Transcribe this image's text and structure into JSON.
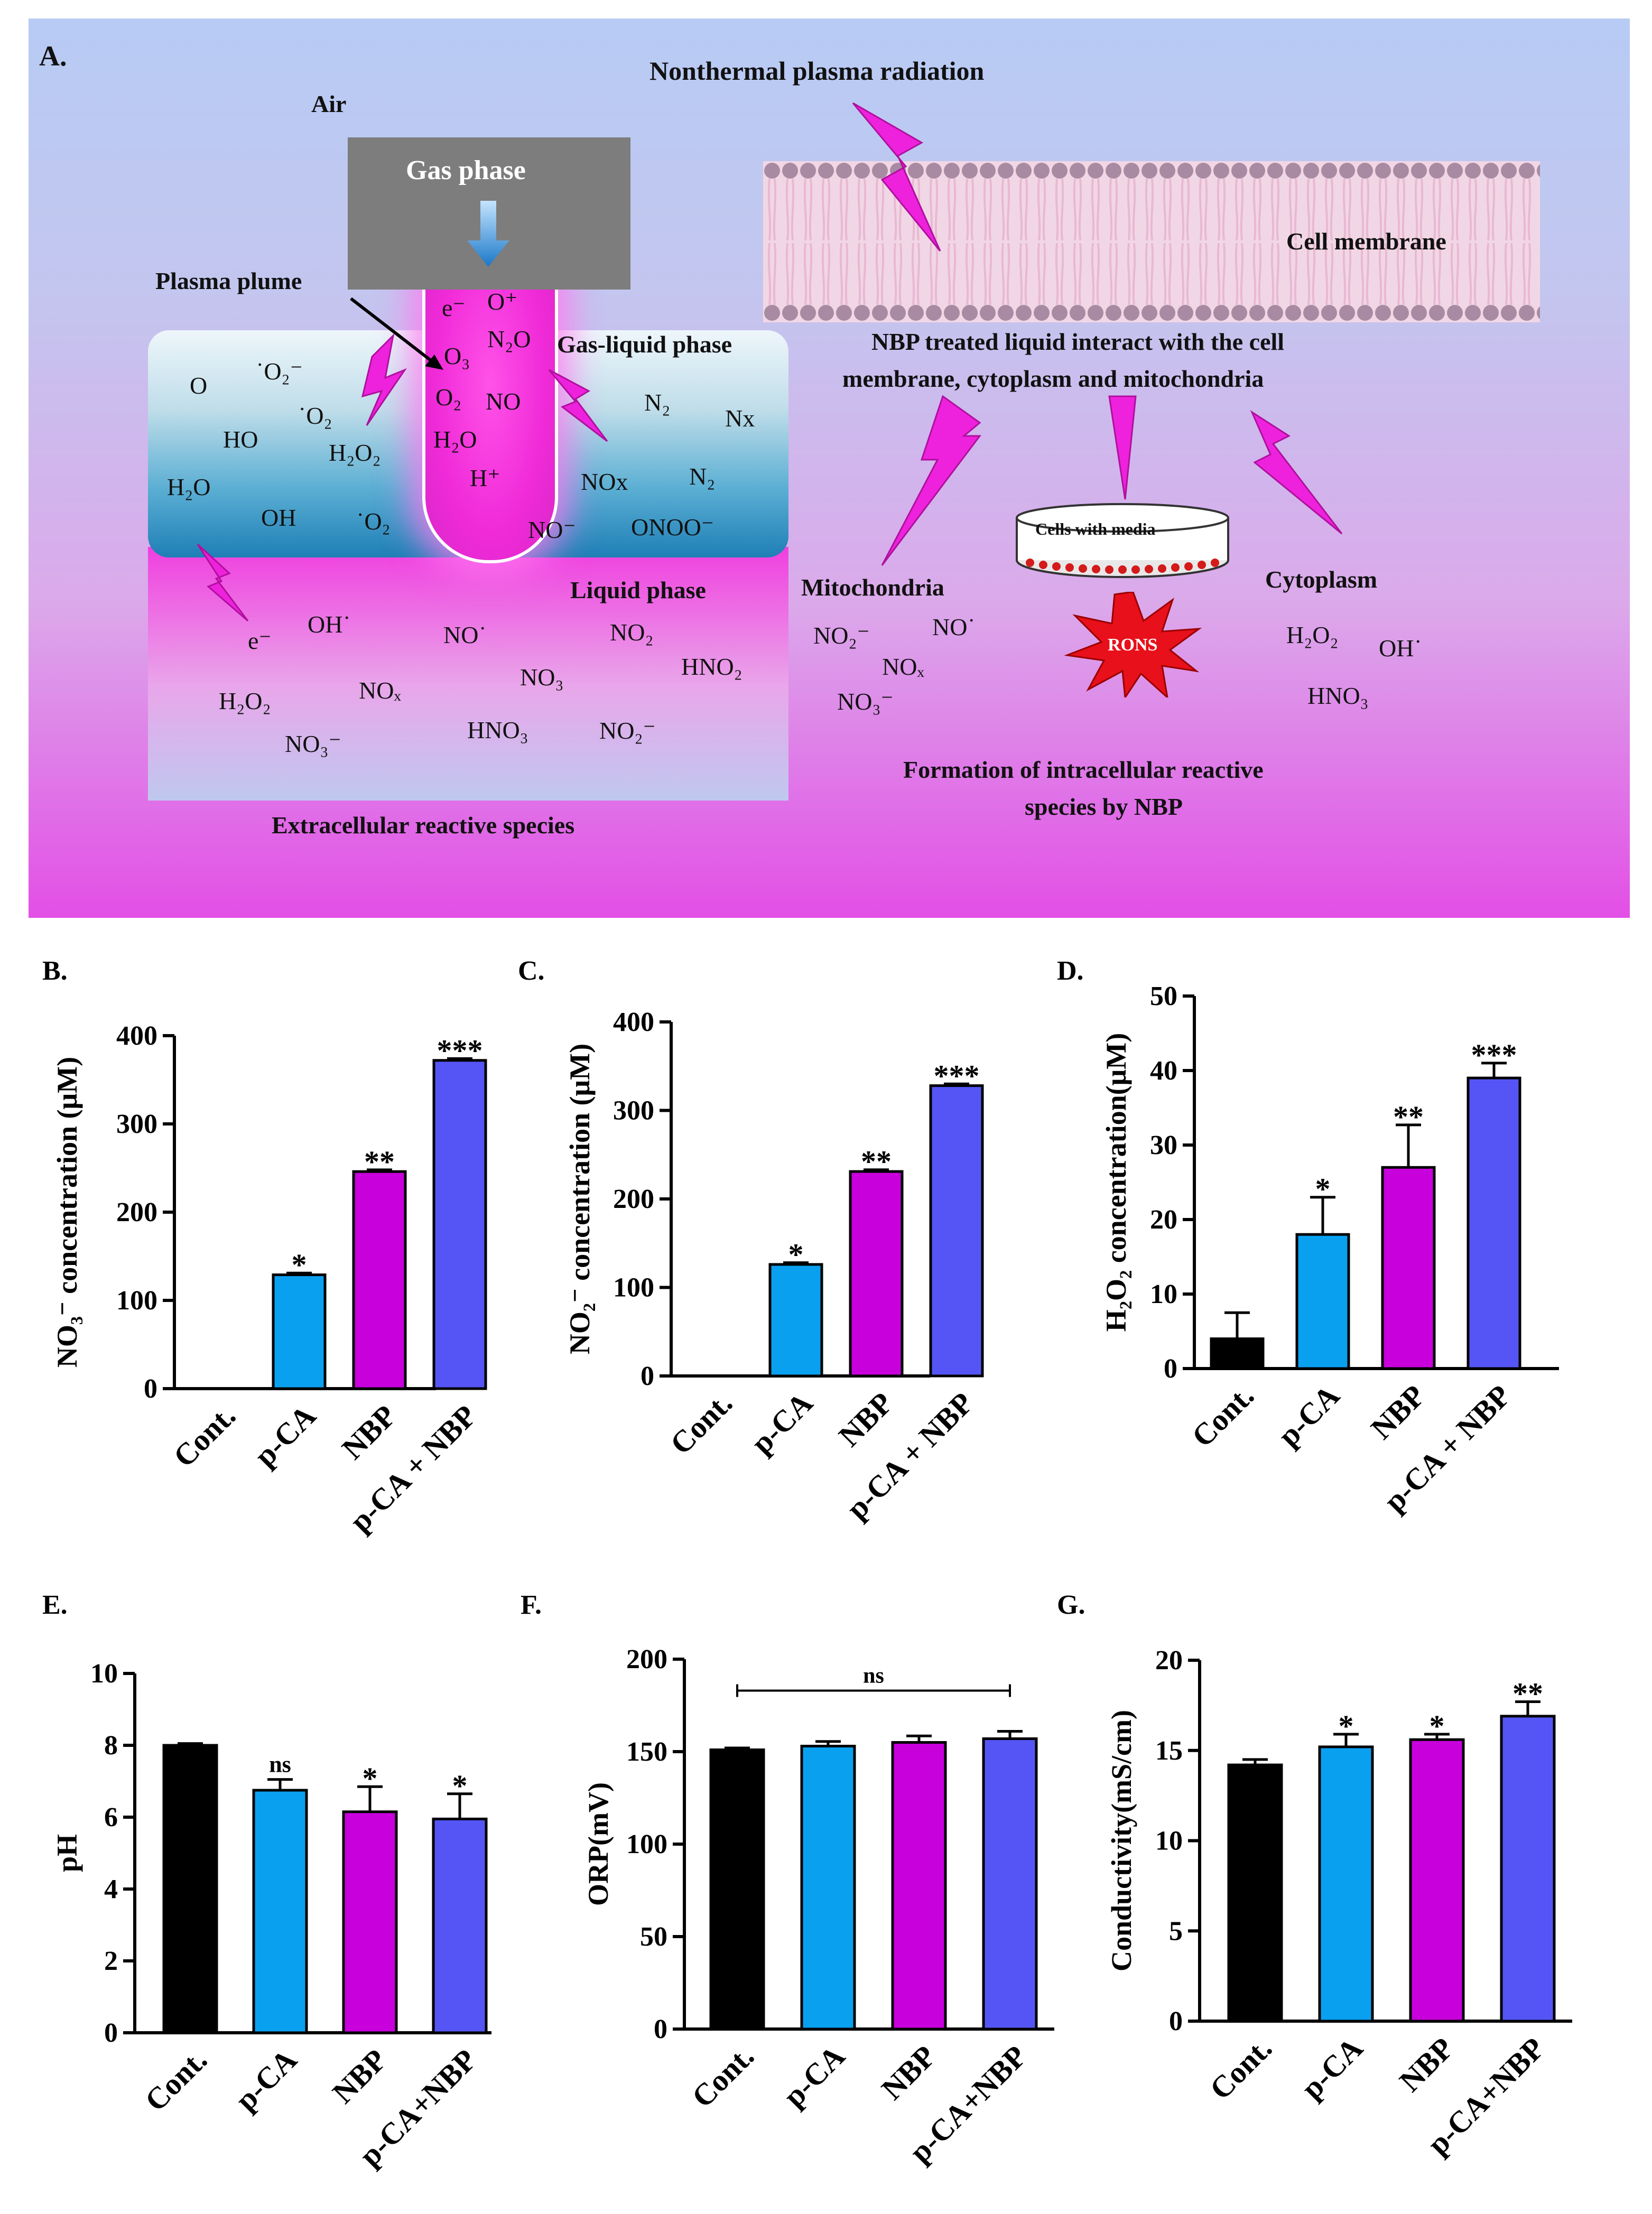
{
  "panel_a": {
    "letter": "A.",
    "title_radiation": "Nonthermal plasma radiation",
    "air": "Air",
    "gas_phase": "Gas phase",
    "plasma_plume": "Plasma plume",
    "gas_liquid_phase": "Gas-liquid phase",
    "liquid_phase": "Liquid phase",
    "extracellular": "Extracellular reactive species",
    "cell_membrane": "Cell membrane",
    "nbp_interact_line1": "NBP treated liquid interact with the cell",
    "nbp_interact_line2": "membrane, cytoplasm and mitochondria",
    "cells_with_media": "Cells with media",
    "mitochondria": "Mitochondria",
    "cytoplasm": "Cytoplasm",
    "rons": "RONS",
    "formation_line1": "Formation of intracellular reactive",
    "formation_line2": "species by NBP",
    "plume_species": [
      "e⁻",
      "O⁺",
      "O₃",
      "N₂O",
      "O₂",
      "NO",
      "H₂O",
      "H⁺"
    ],
    "gas_liquid_species": [
      "O",
      "˙O₂⁻",
      "˙O₂",
      "HO",
      "H₂O₂",
      "H₂O",
      "OH",
      "˙O₂",
      "N₂",
      "Nx",
      "NOx",
      "N₂",
      "NO⁻",
      "ONOO⁻"
    ],
    "liquid_species": [
      "e⁻",
      "OH˙",
      "NO˙",
      "NO₂",
      "NO₃",
      "HNO₂",
      "H₂O₂",
      "NOₓ",
      "HNO₃",
      "NO₂⁻",
      "NO₃⁻"
    ],
    "mito_species": [
      "NO₂⁻",
      "NO˙",
      "NOₓ",
      "NO₃⁻"
    ],
    "cyto_species": [
      "H₂O₂",
      "OH˙",
      "HNO₃"
    ]
  },
  "colors": {
    "cont": "#000000",
    "pca": "#0aa0f0",
    "nbp": "#c800dc",
    "combo": "#5555f5",
    "lightning": "#ee22dd"
  },
  "chart_data": [
    {
      "id": "B",
      "letter": "B.",
      "type": "bar",
      "categories": [
        "Cont.",
        "p-CA",
        "NBP",
        "p-CA + NBP"
      ],
      "values": [
        0,
        129,
        246,
        372
      ],
      "errors": [
        0,
        2,
        2,
        2
      ],
      "significance": [
        "",
        "*",
        "**",
        "***"
      ],
      "ylabel": "NO₃⁻ concentration (μM)",
      "ylim": [
        0,
        400
      ],
      "yticks": [
        0,
        100,
        200,
        300,
        400
      ]
    },
    {
      "id": "C",
      "letter": "C.",
      "type": "bar",
      "categories": [
        "Cont.",
        "p-CA",
        "NBP",
        "p-CA + NBP"
      ],
      "values": [
        0,
        126,
        231,
        328
      ],
      "errors": [
        0,
        2,
        2,
        2
      ],
      "significance": [
        "",
        "*",
        "**",
        "***"
      ],
      "ylabel": "NO₂⁻ concentration (μM)",
      "ylim": [
        0,
        400
      ],
      "yticks": [
        0,
        100,
        200,
        300,
        400
      ]
    },
    {
      "id": "D",
      "letter": "D.",
      "type": "bar",
      "categories": [
        "Cont.",
        "p-CA",
        "NBP",
        "p-CA + NBP"
      ],
      "values": [
        4,
        18,
        27,
        39
      ],
      "errors": [
        3.5,
        5,
        5.7,
        2
      ],
      "significance": [
        "",
        "*",
        "**",
        "***"
      ],
      "ylabel": "H₂O₂ concentration(μM)",
      "ylim": [
        0,
        50
      ],
      "yticks": [
        0,
        10,
        20,
        30,
        40,
        50
      ]
    },
    {
      "id": "E",
      "letter": "E.",
      "type": "bar",
      "categories": [
        "Cont.",
        "p-CA",
        "NBP",
        "p-CA+NBP"
      ],
      "values": [
        8.0,
        6.75,
        6.15,
        5.95
      ],
      "errors": [
        0.05,
        0.3,
        0.7,
        0.7
      ],
      "significance": [
        "",
        "ns",
        "*",
        "*"
      ],
      "ylabel": "pH",
      "ylim": [
        0,
        10
      ],
      "yticks": [
        0,
        2,
        4,
        6,
        8,
        10
      ]
    },
    {
      "id": "F",
      "letter": "F.",
      "type": "bar",
      "categories": [
        "Cont.",
        "p-CA",
        "NBP",
        "p-CA+NBP"
      ],
      "values": [
        151,
        153,
        155,
        157
      ],
      "errors": [
        1,
        2.5,
        3.5,
        4
      ],
      "significance": [
        "",
        "",
        "",
        ""
      ],
      "bracket_label": "ns",
      "ylabel": "ORP(mV)",
      "ylim": [
        0,
        200
      ],
      "yticks": [
        0,
        50,
        100,
        150,
        200
      ]
    },
    {
      "id": "G",
      "letter": "G.",
      "type": "bar",
      "categories": [
        "Cont.",
        "p-CA",
        "NBP",
        "p-CA+NBP"
      ],
      "values": [
        14.2,
        15.2,
        15.6,
        16.9
      ],
      "errors": [
        0.3,
        0.7,
        0.3,
        0.8
      ],
      "significance": [
        "",
        "*",
        "*",
        "**"
      ],
      "ylabel": "Conductivity(mS/cm)",
      "ylim": [
        0,
        20
      ],
      "yticks": [
        0,
        5,
        10,
        15,
        20
      ]
    }
  ]
}
